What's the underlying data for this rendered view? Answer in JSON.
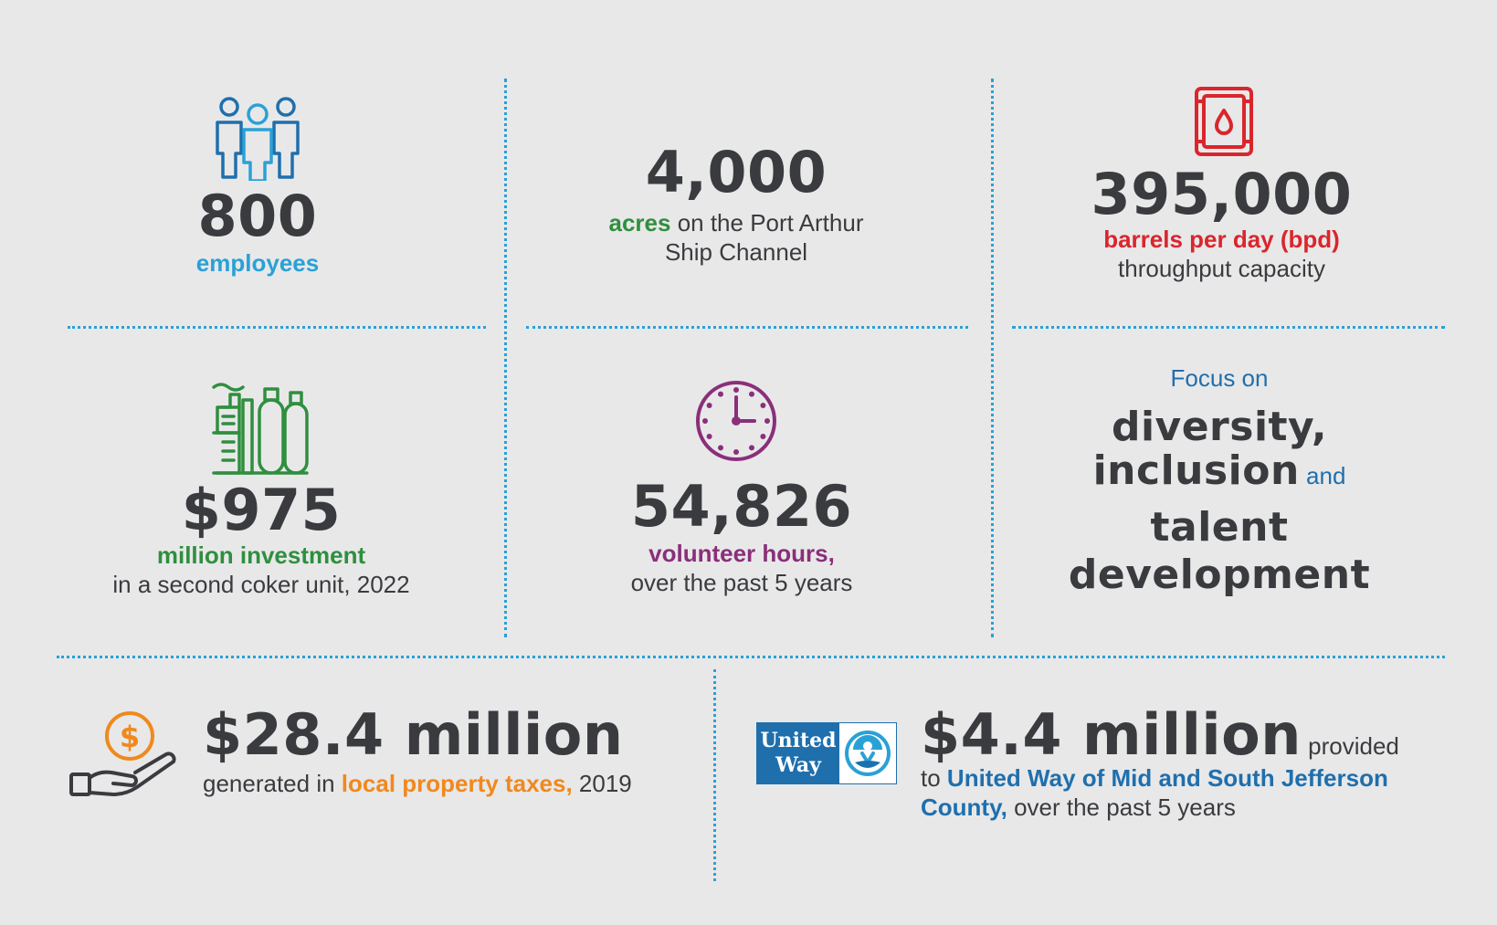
{
  "colors": {
    "background": "#e8e8e9",
    "divider": "#2aa1d6",
    "text": "#3a3b3e",
    "blue": "#2aa1d6",
    "green": "#2f8f3e",
    "red": "#d9262c",
    "purple": "#8a2f7a",
    "navy": "#1f6fad",
    "orange": "#f0891d"
  },
  "employees": {
    "icon": "people-icon",
    "value": "800",
    "label": "employees"
  },
  "acres": {
    "value": "4,000",
    "label_em": "acres",
    "label_rest": " on the Port Arthur",
    "label_line2": "Ship Channel"
  },
  "barrels": {
    "icon": "oil-barrel-icon",
    "value": "395,000",
    "label_em": "barrels per day (bpd)",
    "label_line2": "throughput capacity"
  },
  "investment": {
    "icon": "refinery-icon",
    "value": "$975",
    "label_em": "million investment",
    "label_line2": "in a second coker unit, 2022"
  },
  "volunteer": {
    "icon": "clock-icon",
    "value": "54,826",
    "label_em": "volunteer hours,",
    "label_line2": "over the past 5 years"
  },
  "diversity": {
    "intro": "Focus on",
    "line1": "diversity,",
    "line2_big": "inclusion",
    "line2_small": " and",
    "line3": "talent",
    "line4": "development"
  },
  "taxes": {
    "icon": "hand-coin-icon",
    "value": "$28.4 million",
    "pre": "generated in ",
    "em": "local property taxes,",
    "post": " 2019"
  },
  "united_way": {
    "logo_line1": "United",
    "logo_line2": "Way",
    "value": "$4.4 million",
    "value_suffix": " provided",
    "pre": "to ",
    "em_line1": "United Way of Mid and South Jefferson",
    "em_line2": "County,",
    "post": " over the past 5 years"
  }
}
